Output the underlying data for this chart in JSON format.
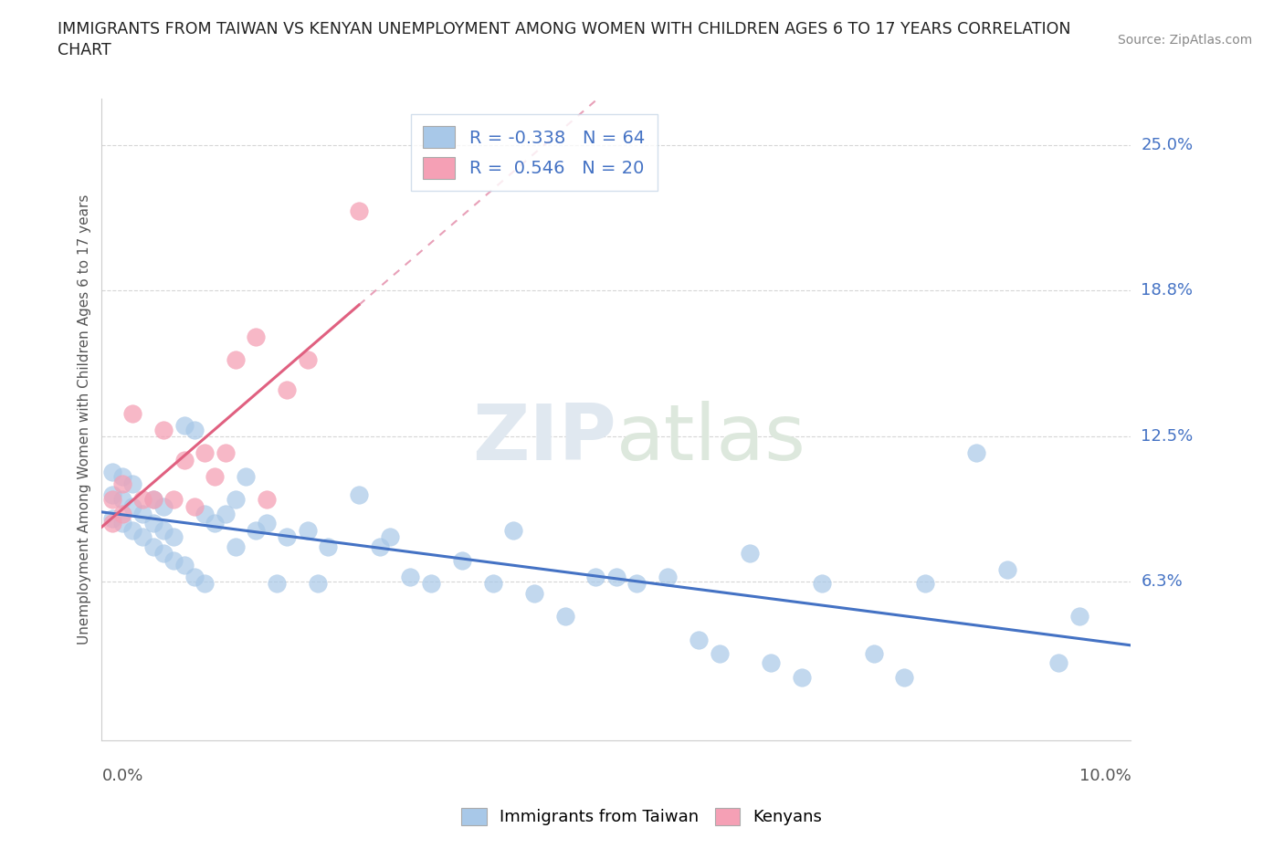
{
  "title_line1": "IMMIGRANTS FROM TAIWAN VS KENYAN UNEMPLOYMENT AMONG WOMEN WITH CHILDREN AGES 6 TO 17 YEARS CORRELATION",
  "title_line2": "CHART",
  "source": "Source: ZipAtlas.com",
  "ylabel": "Unemployment Among Women with Children Ages 6 to 17 years",
  "xlim": [
    0.0,
    0.1
  ],
  "ylim": [
    -0.005,
    0.27
  ],
  "taiwan_R": -0.338,
  "taiwan_N": 64,
  "kenya_R": 0.546,
  "kenya_N": 20,
  "taiwan_color": "#a8c8e8",
  "kenya_color": "#f5a0b5",
  "taiwan_line_color": "#4472c4",
  "kenya_line_color": "#e06080",
  "dashed_line_color": "#e8a0b8",
  "grid_color": "#cccccc",
  "legend_edge_color": "#c8d8e8",
  "taiwan_x": [
    0.001,
    0.001,
    0.001,
    0.002,
    0.002,
    0.002,
    0.003,
    0.003,
    0.003,
    0.004,
    0.004,
    0.005,
    0.005,
    0.005,
    0.006,
    0.006,
    0.006,
    0.007,
    0.007,
    0.008,
    0.008,
    0.009,
    0.009,
    0.01,
    0.01,
    0.011,
    0.012,
    0.013,
    0.013,
    0.014,
    0.015,
    0.016,
    0.017,
    0.018,
    0.02,
    0.021,
    0.022,
    0.025,
    0.027,
    0.028,
    0.03,
    0.032,
    0.035,
    0.038,
    0.04,
    0.042,
    0.045,
    0.048,
    0.05,
    0.052,
    0.055,
    0.058,
    0.06,
    0.063,
    0.065,
    0.068,
    0.07,
    0.075,
    0.078,
    0.08,
    0.085,
    0.088,
    0.093,
    0.095
  ],
  "taiwan_y": [
    0.09,
    0.1,
    0.11,
    0.088,
    0.098,
    0.108,
    0.085,
    0.095,
    0.105,
    0.082,
    0.092,
    0.078,
    0.088,
    0.098,
    0.075,
    0.085,
    0.095,
    0.072,
    0.082,
    0.07,
    0.13,
    0.065,
    0.128,
    0.062,
    0.092,
    0.088,
    0.092,
    0.078,
    0.098,
    0.108,
    0.085,
    0.088,
    0.062,
    0.082,
    0.085,
    0.062,
    0.078,
    0.1,
    0.078,
    0.082,
    0.065,
    0.062,
    0.072,
    0.062,
    0.085,
    0.058,
    0.048,
    0.065,
    0.065,
    0.062,
    0.065,
    0.038,
    0.032,
    0.075,
    0.028,
    0.022,
    0.062,
    0.032,
    0.022,
    0.062,
    0.118,
    0.068,
    0.028,
    0.048
  ],
  "kenya_x": [
    0.001,
    0.001,
    0.002,
    0.002,
    0.003,
    0.004,
    0.005,
    0.006,
    0.007,
    0.008,
    0.009,
    0.01,
    0.011,
    0.012,
    0.013,
    0.015,
    0.016,
    0.018,
    0.02,
    0.025
  ],
  "kenya_y": [
    0.088,
    0.098,
    0.092,
    0.105,
    0.135,
    0.098,
    0.098,
    0.128,
    0.098,
    0.115,
    0.095,
    0.118,
    0.108,
    0.118,
    0.158,
    0.168,
    0.098,
    0.145,
    0.158,
    0.222
  ],
  "watermark_zip": "ZIP",
  "watermark_atlas": "atlas",
  "background_color": "#ffffff"
}
